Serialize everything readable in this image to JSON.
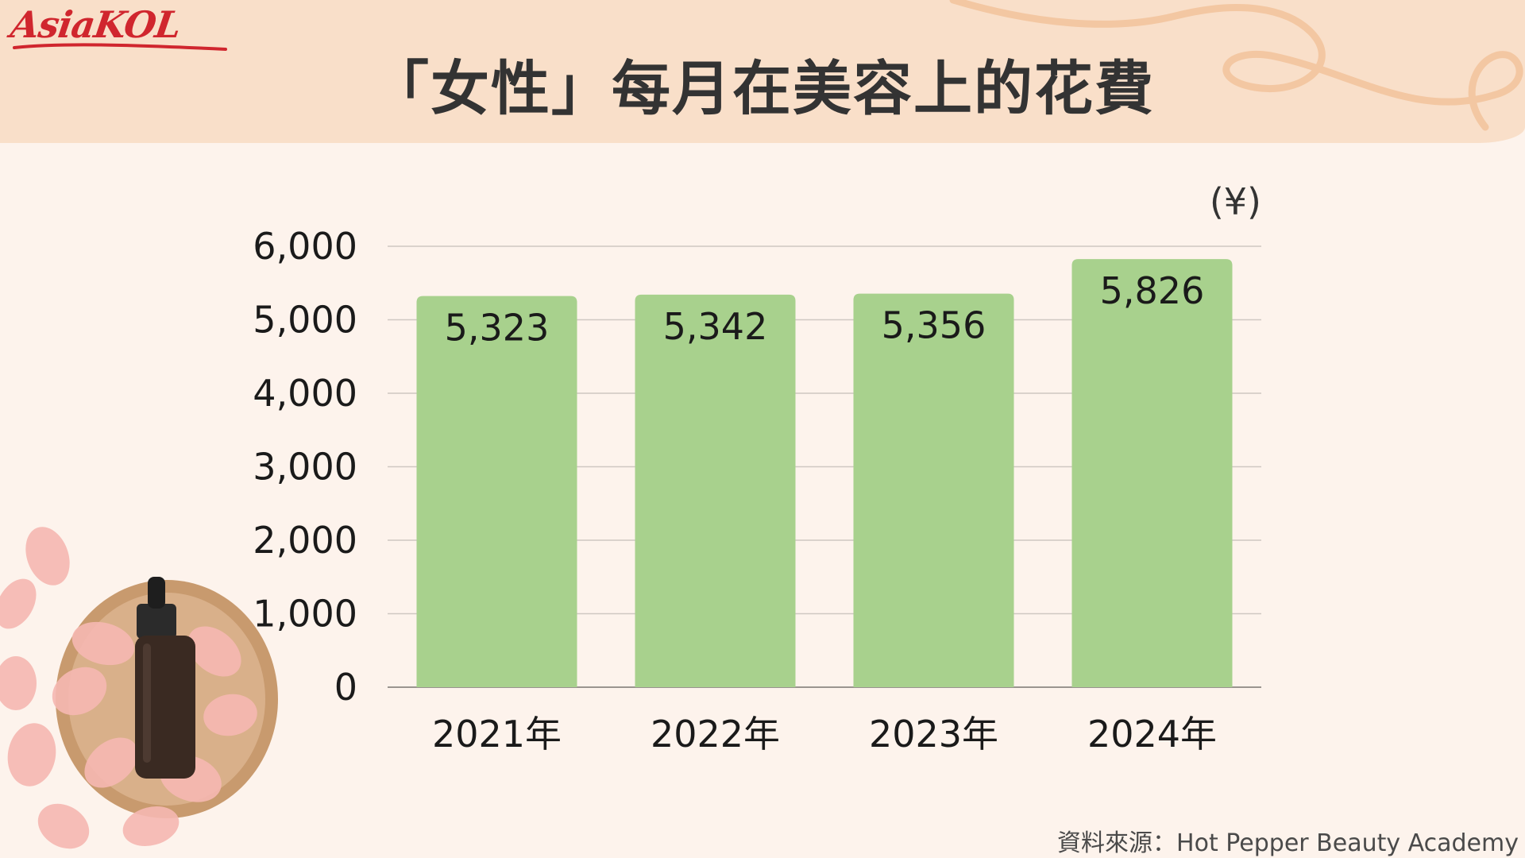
{
  "brand": {
    "logo_text": "AsiaKOL"
  },
  "title": "「女性」每月在美容上的花費",
  "source": "資料來源：Hot Pepper Beauty Academy",
  "colors": {
    "bar": "#a8d18d",
    "grid": "#cfc8c2",
    "header": "#f9dfc9",
    "background": "#fdf3ec",
    "logo": "#d0262e"
  },
  "chart_data": {
    "type": "bar",
    "title": "「女性」每月在美容上的花費",
    "unit": "(¥)",
    "categories": [
      "2021年",
      "2022年",
      "2023年",
      "2024年"
    ],
    "values": [
      5323,
      5342,
      5356,
      5826
    ],
    "value_labels": [
      "5,323",
      "5,342",
      "5,356",
      "5,826"
    ],
    "ylim": [
      0,
      6000
    ],
    "yticks": [
      0,
      1000,
      2000,
      3000,
      4000,
      5000,
      6000
    ],
    "ytick_labels": [
      "0",
      "1,000",
      "2,000",
      "3,000",
      "4,000",
      "5,000",
      "6,000"
    ],
    "grid": true,
    "legend": "none"
  }
}
